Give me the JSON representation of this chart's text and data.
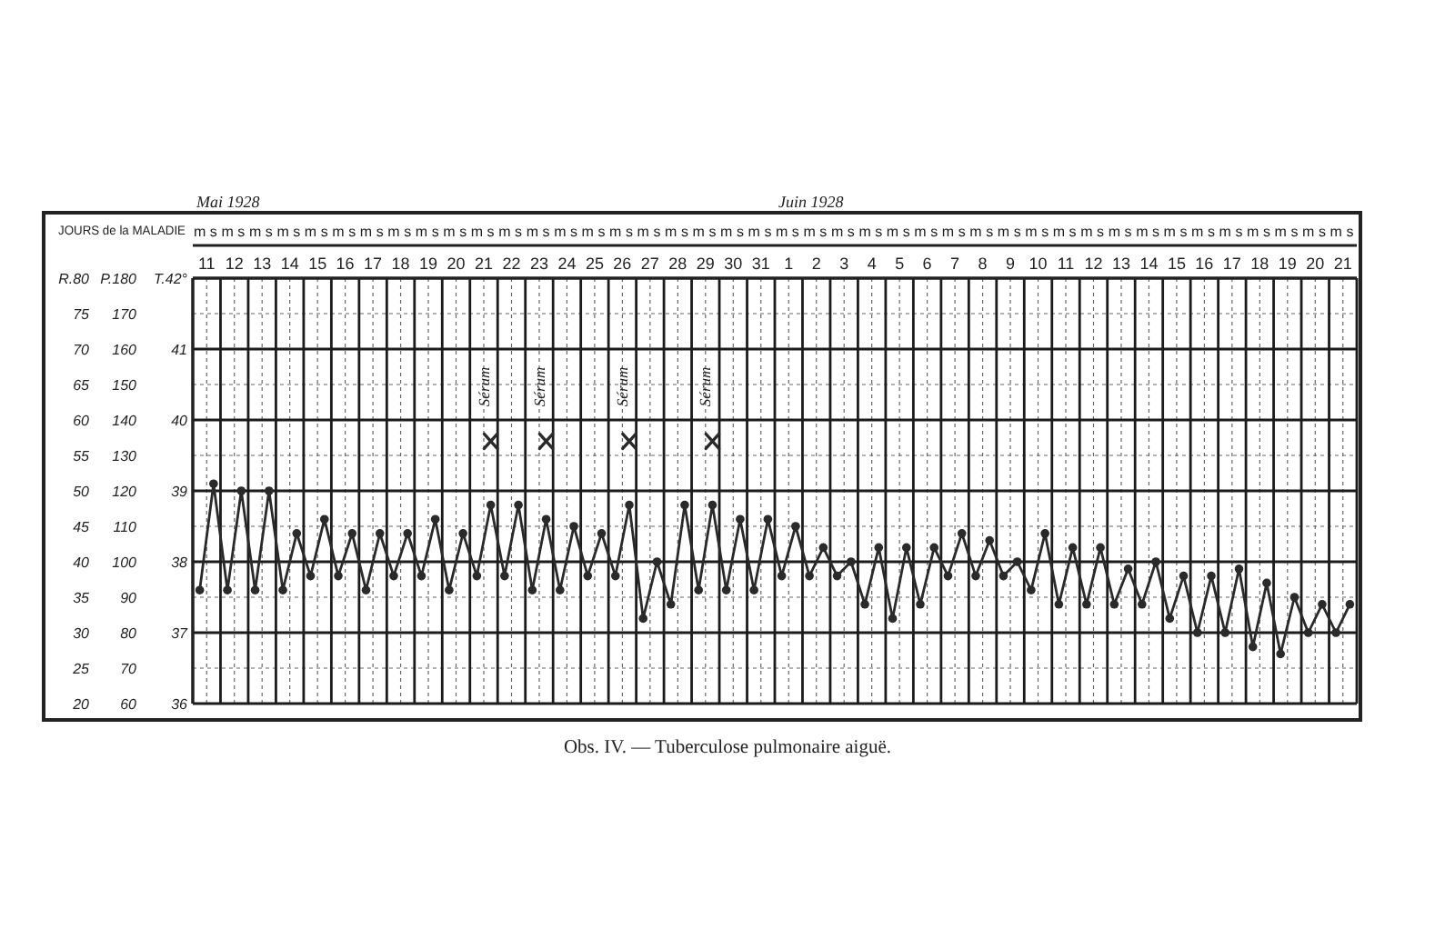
{
  "chart_data": {
    "type": "line",
    "title": "Obs. IV. — Tuberculose pulmonaire aiguë.",
    "xlabel": "JOURS de la MALADIE",
    "categories": [
      "m",
      "s",
      "m",
      "s",
      "m",
      "s",
      "m",
      "s",
      "m",
      "s",
      "m",
      "s",
      "m",
      "s",
      "m",
      "s",
      "m",
      "s",
      "m",
      "s",
      "m",
      "s",
      "m",
      "s",
      "m",
      "s",
      "m",
      "s",
      "m",
      "s",
      "m",
      "s",
      "m",
      "s",
      "m",
      "s",
      "m",
      "s",
      "m",
      "s",
      "m",
      "s",
      "m",
      "s",
      "m",
      "s",
      "m",
      "s",
      "m",
      "s",
      "m",
      "s",
      "m",
      "s",
      "m",
      "s",
      "m",
      "s",
      "m",
      "s",
      "m",
      "s",
      "m",
      "s",
      "m",
      "s",
      "m",
      "s",
      "m",
      "s",
      "m",
      "s",
      "m",
      "s",
      "m",
      "s",
      "m",
      "s",
      "m",
      "s",
      "m",
      "s",
      "m",
      "s"
    ],
    "x2lim": [
      "1928-05-11T00:00",
      "1928-06-22T00:00"
    ],
    "x2ticks": [
      {
        "value": "1928-05-11T12:00",
        "label": "11"
      },
      {
        "value": "1928-05-12T12:00",
        "label": "12"
      },
      {
        "value": "1928-05-13T12:00",
        "label": "13"
      },
      {
        "value": "1928-05-14T12:00",
        "label": "14"
      },
      {
        "value": "1928-05-15T12:00",
        "label": "15"
      },
      {
        "value": "1928-05-16T12:00",
        "label": "16"
      },
      {
        "value": "1928-05-17T12:00",
        "label": "17"
      },
      {
        "value": "1928-05-18T12:00",
        "label": "18"
      },
      {
        "value": "1928-05-19T12:00",
        "label": "19"
      },
      {
        "value": "1928-05-20T12:00",
        "label": "20"
      },
      {
        "value": "1928-05-21T12:00",
        "label": "21"
      },
      {
        "value": "1928-05-22T12:00",
        "label": "22"
      },
      {
        "value": "1928-05-23T12:00",
        "label": "23"
      },
      {
        "value": "1928-05-24T12:00",
        "label": "24"
      },
      {
        "value": "1928-05-25T12:00",
        "label": "25"
      },
      {
        "value": "1928-05-26T12:00",
        "label": "26"
      },
      {
        "value": "1928-05-27T12:00",
        "label": "27"
      },
      {
        "value": "1928-05-28T12:00",
        "label": "28"
      },
      {
        "value": "1928-05-29T12:00",
        "label": "29"
      },
      {
        "value": "1928-05-30T12:00",
        "label": "30"
      },
      {
        "value": "1928-05-31T12:00",
        "label": "31"
      },
      {
        "value": "1928-06-01T12:00",
        "label": "1"
      },
      {
        "value": "1928-06-02T12:00",
        "label": "2"
      },
      {
        "value": "1928-06-03T12:00",
        "label": "3"
      },
      {
        "value": "1928-06-04T12:00",
        "label": "4"
      },
      {
        "value": "1928-06-05T12:00",
        "label": "5"
      },
      {
        "value": "1928-06-06T12:00",
        "label": "6"
      },
      {
        "value": "1928-06-07T12:00",
        "label": "7"
      },
      {
        "value": "1928-06-08T12:00",
        "label": "8"
      },
      {
        "value": "1928-06-09T12:00",
        "label": "9"
      },
      {
        "value": "1928-06-10T12:00",
        "label": "10"
      },
      {
        "value": "1928-06-11T12:00",
        "label": "11"
      },
      {
        "value": "1928-06-12T12:00",
        "label": "12"
      },
      {
        "value": "1928-06-13T12:00",
        "label": "13"
      },
      {
        "value": "1928-06-14T12:00",
        "label": "14"
      },
      {
        "value": "1928-06-15T12:00",
        "label": "15"
      },
      {
        "value": "1928-06-16T12:00",
        "label": "16"
      },
      {
        "value": "1928-06-17T12:00",
        "label": "17"
      },
      {
        "value": "1928-06-18T12:00",
        "label": "18"
      },
      {
        "value": "1928-06-19T12:00",
        "label": "19"
      },
      {
        "value": "1928-06-20T12:00",
        "label": "20"
      },
      {
        "value": "1928-06-21T12:00",
        "label": "21"
      }
    ],
    "ylim": [
      36,
      42
    ],
    "yticks": [
      36,
      37,
      38,
      39,
      40,
      41,
      {
        "value": 42,
        "label": "T.42°"
      }
    ],
    "y2lim": [
      60,
      180
    ],
    "y2ticks": [
      60,
      70,
      80,
      90,
      100,
      110,
      120,
      130,
      140,
      150,
      160,
      170,
      {
        "value": 180,
        "label": "P.180"
      }
    ],
    "y3lim": [
      20,
      80
    ],
    "y3ticks": [
      20,
      25,
      30,
      35,
      40,
      45,
      50,
      55,
      60,
      65,
      70,
      75,
      {
        "value": 80,
        "label": "R.80"
      }
    ],
    "series": [
      {
        "color": "#2a2a2a",
        "values": [
          37.6,
          39.1,
          37.6,
          39.0,
          37.6,
          39.0,
          37.6,
          38.4,
          37.8,
          38.6,
          37.8,
          38.4,
          37.6,
          38.4,
          37.8,
          38.4,
          37.8,
          38.6,
          37.6,
          38.4,
          37.8,
          38.8,
          37.8,
          38.8,
          37.6,
          38.6,
          37.6,
          38.5,
          37.8,
          38.4,
          37.8,
          38.8,
          37.2,
          38.0,
          37.4,
          38.8,
          37.6,
          38.8,
          37.6,
          38.6,
          37.6,
          38.6,
          37.8,
          38.5,
          37.8,
          38.2,
          37.8,
          38.0,
          37.4,
          38.2,
          37.2,
          38.2,
          37.4,
          38.2,
          37.8,
          38.4,
          37.8,
          38.3,
          37.8,
          38.0,
          37.6,
          38.4,
          37.4,
          38.2,
          37.4,
          38.2,
          37.4,
          37.9,
          37.4,
          38.0,
          37.2,
          37.8,
          37.0,
          37.8,
          37.0,
          37.9,
          36.8,
          37.7,
          36.7,
          37.5,
          37.0,
          37.4,
          37.0,
          37.4
        ]
      },
      {
        "type": "scatter",
        "axis": "y3",
        "color": "#2a2a2a",
        "marker": "cross",
        "values": [
          null,
          null,
          null,
          null,
          null,
          null,
          null,
          null,
          null,
          null,
          null,
          null,
          null,
          null,
          null,
          null,
          null,
          null,
          null,
          null,
          null,
          57,
          null,
          null,
          null,
          57,
          null,
          null,
          null,
          null,
          null,
          57,
          null,
          null,
          null,
          null,
          null,
          57,
          null,
          null,
          null,
          null,
          null,
          null,
          null,
          null,
          null,
          null,
          null,
          null,
          null,
          null,
          null,
          null,
          null,
          null,
          null,
          null,
          null,
          null,
          null,
          null,
          null,
          null,
          null,
          null,
          null,
          null,
          null,
          null,
          null,
          null,
          null,
          null,
          null,
          null,
          null,
          null,
          null,
          null,
          null,
          null,
          null,
          null
        ],
        "value_labels": [
          null,
          null,
          null,
          null,
          null,
          null,
          null,
          null,
          null,
          null,
          null,
          null,
          null,
          null,
          null,
          null,
          null,
          null,
          null,
          null,
          null,
          "Sérum",
          null,
          null,
          null,
          "Sérum",
          null,
          null,
          null,
          null,
          null,
          "Sérum",
          null,
          null,
          null,
          null,
          null,
          "Sérum",
          null,
          null,
          null,
          null,
          null,
          null,
          null,
          null,
          null,
          null,
          null,
          null,
          null,
          null,
          null,
          null,
          null,
          null,
          null,
          null,
          null,
          null,
          null,
          null,
          null,
          null,
          null,
          null,
          null,
          null,
          null,
          null,
          null,
          null,
          null,
          null,
          null,
          null,
          null,
          null,
          null,
          null,
          null,
          null,
          null,
          null
        ]
      }
    ],
    "annotations": [
      "Mai 1928",
      "Juin 1928"
    ],
    "grid": true,
    "marker": "circle",
    "line_style": "solid"
  }
}
